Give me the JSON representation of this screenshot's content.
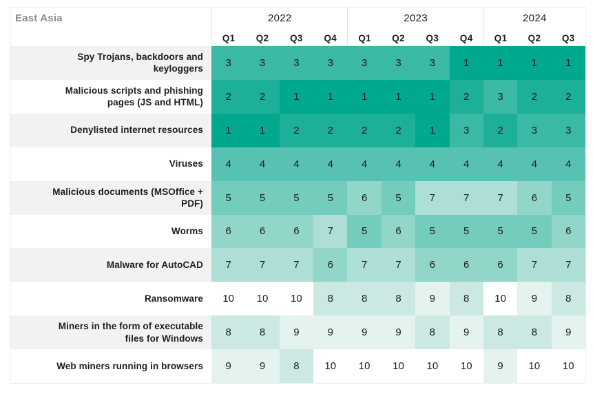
{
  "title": "East Asia",
  "colors": {
    "title_text": "#8c8c8c",
    "body_text": "#1d1d1b",
    "label_stripe": "#f2f2f2",
    "table_border": "#ececec",
    "group_separator": "#e4e4e4"
  },
  "chart_data": {
    "type": "heatmap",
    "title": "East Asia",
    "column_groups": [
      {
        "year": "2022",
        "quarters": [
          "Q1",
          "Q2",
          "Q3",
          "Q4"
        ]
      },
      {
        "year": "2023",
        "quarters": [
          "Q1",
          "Q2",
          "Q3",
          "Q4"
        ]
      },
      {
        "year": "2024",
        "quarters": [
          "Q1",
          "Q2",
          "Q3"
        ]
      }
    ],
    "columns": [
      "2022 Q1",
      "2022 Q2",
      "2022 Q3",
      "2022 Q4",
      "2023 Q1",
      "2023 Q2",
      "2023 Q3",
      "2023 Q4",
      "2024 Q1",
      "2024 Q2",
      "2024 Q3"
    ],
    "value_scale": {
      "min": 1,
      "max": 10,
      "note_visible": false
    },
    "rank_colors": {
      "1": "#00a88e",
      "2": "#1db098",
      "3": "#3ab9a4",
      "4": "#57c2b1",
      "5": "#74ccbd",
      "6": "#91d6c9",
      "7": "#aedfd6",
      "8": "#cbe9e2",
      "9": "#e4f3ef",
      "10": "#ffffff"
    },
    "rows": [
      {
        "label": "Spy Trojans, backdoors and keyloggers",
        "values": [
          3,
          3,
          3,
          3,
          3,
          3,
          3,
          1,
          1,
          1,
          1
        ]
      },
      {
        "label": "Malicious scripts and phishing pages (JS and HTML)",
        "values": [
          2,
          2,
          1,
          1,
          1,
          1,
          1,
          2,
          3,
          2,
          2
        ]
      },
      {
        "label": "Denylisted internet resources",
        "values": [
          1,
          1,
          2,
          2,
          2,
          2,
          1,
          3,
          2,
          3,
          3
        ]
      },
      {
        "label": "Viruses",
        "values": [
          4,
          4,
          4,
          4,
          4,
          4,
          4,
          4,
          4,
          4,
          4
        ]
      },
      {
        "label": "Malicious documents (MSOffice + PDF)",
        "values": [
          5,
          5,
          5,
          5,
          6,
          5,
          7,
          7,
          7,
          6,
          5
        ]
      },
      {
        "label": "Worms",
        "values": [
          6,
          6,
          6,
          7,
          5,
          6,
          5,
          5,
          5,
          5,
          6
        ]
      },
      {
        "label": "Malware for AutoCAD",
        "values": [
          7,
          7,
          7,
          6,
          7,
          7,
          6,
          6,
          6,
          7,
          7
        ]
      },
      {
        "label": "Ransomware",
        "values": [
          10,
          10,
          10,
          8,
          8,
          8,
          9,
          8,
          10,
          9,
          8
        ]
      },
      {
        "label": "Miners in the form of executable files for Windows",
        "values": [
          8,
          8,
          9,
          9,
          9,
          9,
          8,
          9,
          8,
          8,
          9
        ]
      },
      {
        "label": "Web miners running in browsers",
        "values": [
          9,
          9,
          8,
          10,
          10,
          10,
          10,
          10,
          9,
          10,
          10
        ]
      }
    ]
  }
}
